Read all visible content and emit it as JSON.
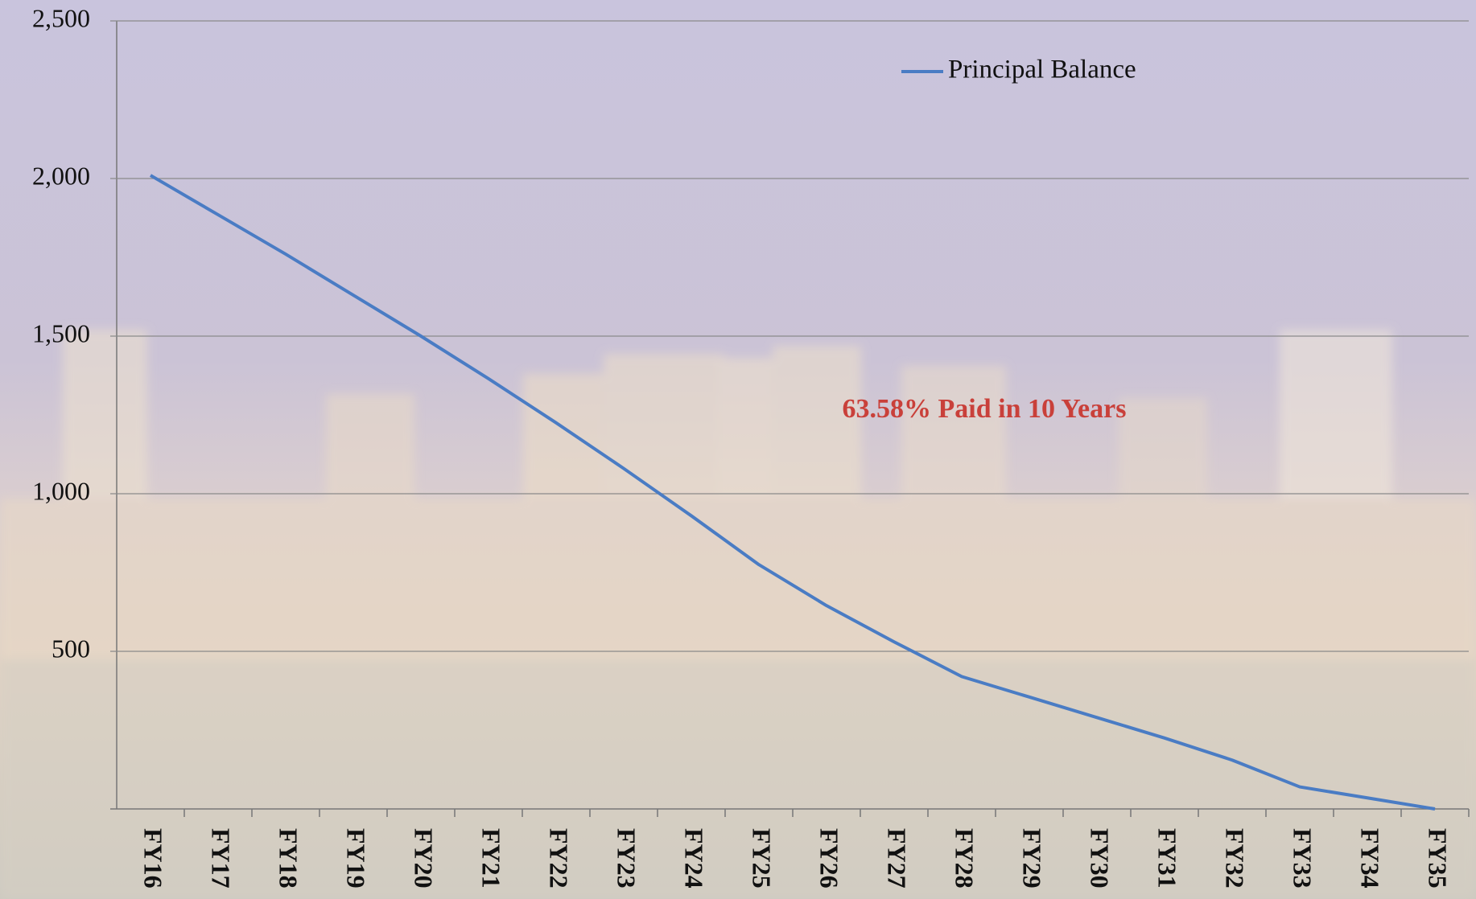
{
  "chart_data": {
    "type": "line",
    "categories": [
      "FY16",
      "FY17",
      "FY18",
      "FY19",
      "FY20",
      "FY21",
      "FY22",
      "FY23",
      "FY24",
      "FY25",
      "FY26",
      "FY27",
      "FY28",
      "FY29",
      "FY30",
      "FY31",
      "FY32",
      "FY33",
      "FY34",
      "FY35"
    ],
    "series": [
      {
        "name": "Principal Balance",
        "color": "#4a7cc4",
        "values": [
          2010,
          1885,
          1760,
          1630,
          1500,
          1365,
          1225,
          1080,
          930,
          775,
          645,
          530,
          420,
          355,
          290,
          225,
          155,
          70,
          35,
          0
        ]
      }
    ],
    "ylim": [
      0,
      2500
    ],
    "yticks": [
      {
        "value": 500,
        "label": "500"
      },
      {
        "value": 1000,
        "label": "1,000"
      },
      {
        "value": 1500,
        "label": "1,500"
      },
      {
        "value": 2000,
        "label": "2,000"
      },
      {
        "value": 2500,
        "label": "2,500"
      }
    ],
    "grid": true,
    "legend": "top-right",
    "annotation": "63.58% Paid in 10 Years"
  }
}
